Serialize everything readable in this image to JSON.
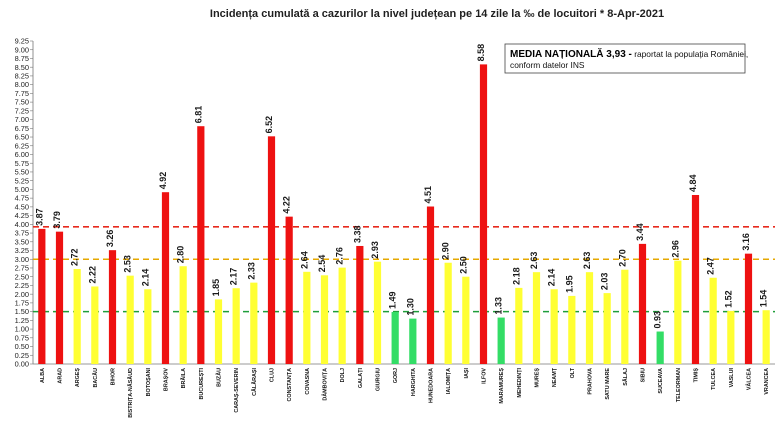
{
  "chart_data": {
    "type": "bar",
    "title": "Incidența cumulată a cazurilor la nivel județean pe 14 zile la ‰ de locuitori *  8-Apr-2021",
    "ylim": [
      0,
      9.25
    ],
    "ytick_step": 0.25,
    "grid": false,
    "categories": [
      "ALBA",
      "ARAD",
      "ARGEȘ",
      "BACĂU",
      "BIHOR",
      "BISTRIȚA-NĂSĂUD",
      "BOTOȘANI",
      "BRAȘOV",
      "BRĂILA",
      "BUCUREȘTI",
      "BUZĂU",
      "CARAȘ-SEVERIN",
      "CĂLĂRAȘI",
      "CLUJ",
      "CONSTANȚA",
      "COVASNA",
      "DÂMBOVIȚA",
      "DOLJ",
      "GALAȚI",
      "GIURGIU",
      "GORJ",
      "HARGHITA",
      "HUNEDOARA",
      "IALOMIȚA",
      "IAȘI",
      "ILFOV",
      "MARAMUREȘ",
      "MEHEDINȚI",
      "MUREȘ",
      "NEAMȚ",
      "OLT",
      "PRAHOVA",
      "SATU MARE",
      "SĂLAJ",
      "SIBIU",
      "SUCEAVA",
      "TELEORMAN",
      "TIMIȘ",
      "TULCEA",
      "VASLUI",
      "VÂLCEA",
      "VRANCEA"
    ],
    "values": [
      3.87,
      3.79,
      2.72,
      2.22,
      3.26,
      2.53,
      2.14,
      4.92,
      2.8,
      6.81,
      1.85,
      2.17,
      2.33,
      6.52,
      4.22,
      2.64,
      2.54,
      2.76,
      3.38,
      2.93,
      1.49,
      1.3,
      4.51,
      2.9,
      2.5,
      8.58,
      1.33,
      2.18,
      2.63,
      2.14,
      1.95,
      2.63,
      2.03,
      2.7,
      3.44,
      0.93,
      2.96,
      4.84,
      2.47,
      1.52,
      3.16,
      1.54
    ],
    "value_labels": [
      "3.87",
      "3.79",
      "2.72",
      "2.22",
      "3.26",
      "2.53",
      "2.14",
      "4.92",
      "2.80",
      "6.81",
      "1.85",
      "2.17",
      "2.33",
      "6.52",
      "4.22",
      "2.64",
      "2.54",
      "2.76",
      "3.38",
      "2.93",
      "1.49",
      "1.30",
      "4.51",
      "2.90",
      "2.50",
      "8.58",
      "1.33",
      "2.18",
      "2.63",
      "2.14",
      "1.95",
      "2.63",
      "2.03",
      "2.70",
      "3.44",
      "0.93",
      "2.96",
      "4.84",
      "2.47",
      "1.52",
      "3.16",
      "1.54"
    ],
    "thresholds": [
      {
        "value": 3.93,
        "color": "#e8291c"
      },
      {
        "value": 3.0,
        "color": "#e6a800"
      },
      {
        "value": 1.5,
        "color": "#1f9e3a"
      }
    ],
    "color_rules": [
      {
        "min": 3.0,
        "color": "#ee1111"
      },
      {
        "min": 1.5,
        "color": "#ffff33"
      },
      {
        "min": 0,
        "color": "#33dd66"
      }
    ],
    "annotation": {
      "bold_text": "MEDIA NAȚIONALĂ  3,93 -",
      "rest_text": " raportat la populația României,",
      "line2": "conform datelor INS"
    }
  }
}
